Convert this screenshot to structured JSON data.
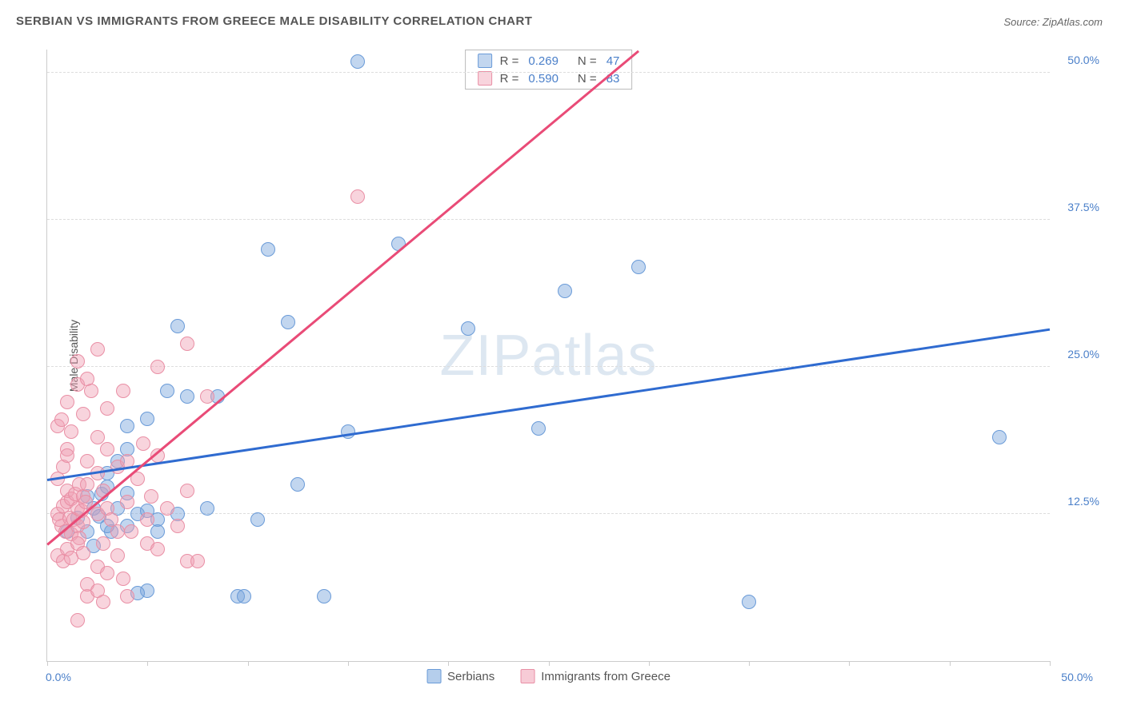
{
  "title": "SERBIAN VS IMMIGRANTS FROM GREECE MALE DISABILITY CORRELATION CHART",
  "source": "Source: ZipAtlas.com",
  "y_axis_label": "Male Disability",
  "watermark": "ZIPatlas",
  "chart": {
    "type": "scatter",
    "xlim": [
      0,
      50
    ],
    "ylim": [
      0,
      52
    ],
    "x_tick_labels": [
      {
        "value": 0,
        "text": "0.0%"
      },
      {
        "value": 50,
        "text": "50.0%"
      }
    ],
    "y_grid_lines": [
      12.5,
      25.0,
      37.5,
      50.0
    ],
    "y_tick_labels": [
      {
        "value": 12.5,
        "text": "12.5%"
      },
      {
        "value": 25.0,
        "text": "25.0%"
      },
      {
        "value": 37.5,
        "text": "37.5%"
      },
      {
        "value": 50.0,
        "text": "50.0%"
      }
    ],
    "x_ticks": [
      0,
      5,
      10,
      15,
      20,
      25,
      30,
      35,
      40,
      45,
      50
    ],
    "background_color": "#ffffff",
    "grid_color": "#dddddd",
    "axis_color": "#cccccc",
    "series": [
      {
        "name": "Serbians",
        "fill": "rgba(120,165,220,0.45)",
        "stroke": "#6a9bd8",
        "trend_color": "#2f6bd0",
        "trend_dash_color": "#a9c2ec",
        "R": "0.269",
        "N": "47",
        "trend": {
          "x1": 0,
          "y1": 15.5,
          "x2": 50,
          "y2": 28.3
        },
        "points": [
          [
            1.5,
            12.2
          ],
          [
            2.0,
            11.0
          ],
          [
            2.3,
            13.0
          ],
          [
            2.6,
            12.3
          ],
          [
            2.0,
            14.0
          ],
          [
            3.5,
            17.0
          ],
          [
            3.2,
            11.0
          ],
          [
            4.0,
            18.0
          ],
          [
            4.0,
            14.3
          ],
          [
            4.5,
            12.5
          ],
          [
            4.0,
            20.0
          ],
          [
            5.0,
            12.8
          ],
          [
            5.0,
            20.6
          ],
          [
            5.5,
            12.0
          ],
          [
            6.0,
            23.0
          ],
          [
            6.5,
            12.5
          ],
          [
            6.5,
            28.5
          ],
          [
            7.0,
            22.5
          ],
          [
            8.0,
            13.0
          ],
          [
            8.5,
            22.5
          ],
          [
            9.5,
            5.5
          ],
          [
            9.8,
            5.5
          ],
          [
            10.5,
            12.0
          ],
          [
            11.0,
            35.0
          ],
          [
            12.0,
            28.8
          ],
          [
            12.5,
            15.0
          ],
          [
            13.8,
            5.5
          ],
          [
            15.0,
            19.5
          ],
          [
            15.5,
            51.0
          ],
          [
            17.5,
            35.5
          ],
          [
            21.0,
            28.3
          ],
          [
            24.5,
            19.8
          ],
          [
            25.8,
            31.5
          ],
          [
            29.5,
            33.5
          ],
          [
            35.0,
            5.0
          ],
          [
            47.5,
            19.0
          ],
          [
            1.0,
            11.0
          ],
          [
            2.3,
            9.8
          ],
          [
            2.7,
            14.2
          ],
          [
            3.5,
            13.0
          ],
          [
            3.0,
            11.5
          ],
          [
            5.0,
            6.0
          ],
          [
            5.5,
            11.0
          ],
          [
            4.5,
            5.8
          ],
          [
            3.0,
            16.0
          ],
          [
            3.0,
            14.8
          ],
          [
            4.0,
            11.5
          ]
        ]
      },
      {
        "name": "Immigrants from Greece",
        "fill": "rgba(240,160,180,0.45)",
        "stroke": "#e98fa5",
        "trend_color": "#e94b77",
        "trend_dash_color": "#f4bccb",
        "R": "0.590",
        "N": "83",
        "trend": {
          "x1": 0,
          "y1": 10.0,
          "x2": 29.5,
          "y2": 52.0
        },
        "points": [
          [
            0.5,
            12.5
          ],
          [
            0.7,
            11.5
          ],
          [
            0.8,
            13.2
          ],
          [
            0.6,
            12.0
          ],
          [
            0.9,
            11.0
          ],
          [
            1.0,
            13.5
          ],
          [
            1.0,
            14.5
          ],
          [
            1.1,
            12.2
          ],
          [
            1.2,
            10.8
          ],
          [
            1.2,
            13.8
          ],
          [
            1.3,
            12.0
          ],
          [
            1.4,
            14.2
          ],
          [
            1.5,
            11.5
          ],
          [
            1.5,
            13.0
          ],
          [
            1.6,
            15.0
          ],
          [
            1.6,
            10.5
          ],
          [
            1.7,
            12.8
          ],
          [
            1.8,
            14.0
          ],
          [
            1.8,
            11.8
          ],
          [
            1.9,
            13.5
          ],
          [
            0.5,
            20.0
          ],
          [
            0.7,
            20.5
          ],
          [
            1.0,
            18.0
          ],
          [
            1.0,
            22.0
          ],
          [
            1.2,
            19.5
          ],
          [
            1.5,
            23.5
          ],
          [
            1.5,
            25.5
          ],
          [
            1.8,
            21.0
          ],
          [
            2.0,
            17.0
          ],
          [
            2.0,
            24.0
          ],
          [
            2.2,
            23.0
          ],
          [
            2.5,
            12.5
          ],
          [
            2.5,
            19.0
          ],
          [
            2.8,
            14.5
          ],
          [
            2.8,
            10.0
          ],
          [
            3.0,
            13.0
          ],
          [
            3.0,
            21.5
          ],
          [
            3.2,
            12.0
          ],
          [
            3.5,
            11.0
          ],
          [
            3.5,
            16.5
          ],
          [
            3.8,
            23.0
          ],
          [
            4.0,
            13.5
          ],
          [
            4.2,
            11.0
          ],
          [
            4.5,
            15.5
          ],
          [
            4.8,
            18.5
          ],
          [
            5.0,
            12.0
          ],
          [
            5.2,
            14.0
          ],
          [
            5.5,
            17.5
          ],
          [
            6.0,
            13.0
          ],
          [
            6.5,
            11.5
          ],
          [
            7.0,
            27.0
          ],
          [
            7.0,
            8.5
          ],
          [
            8.0,
            22.5
          ],
          [
            0.5,
            9.0
          ],
          [
            0.8,
            8.5
          ],
          [
            1.0,
            9.5
          ],
          [
            1.2,
            8.8
          ],
          [
            1.5,
            10.0
          ],
          [
            1.5,
            3.5
          ],
          [
            1.8,
            9.2
          ],
          [
            2.0,
            5.5
          ],
          [
            2.0,
            6.5
          ],
          [
            2.5,
            6.0
          ],
          [
            2.5,
            8.0
          ],
          [
            2.8,
            5.0
          ],
          [
            3.0,
            7.5
          ],
          [
            3.5,
            9.0
          ],
          [
            3.8,
            7.0
          ],
          [
            4.0,
            5.5
          ],
          [
            5.0,
            10.0
          ],
          [
            5.5,
            9.5
          ],
          [
            7.5,
            8.5
          ],
          [
            0.5,
            15.5
          ],
          [
            0.8,
            16.5
          ],
          [
            1.0,
            17.5
          ],
          [
            2.0,
            15.0
          ],
          [
            2.5,
            16.0
          ],
          [
            2.5,
            26.5
          ],
          [
            3.0,
            18.0
          ],
          [
            4.0,
            17.0
          ],
          [
            15.5,
            39.5
          ],
          [
            7.0,
            14.5
          ],
          [
            5.5,
            25.0
          ]
        ]
      }
    ]
  },
  "legend_bottom": [
    {
      "swatch_fill": "rgba(120,165,220,0.55)",
      "swatch_stroke": "#6a9bd8",
      "label": "Serbians"
    },
    {
      "swatch_fill": "rgba(240,160,180,0.55)",
      "swatch_stroke": "#e98fa5",
      "label": "Immigrants from Greece"
    }
  ]
}
